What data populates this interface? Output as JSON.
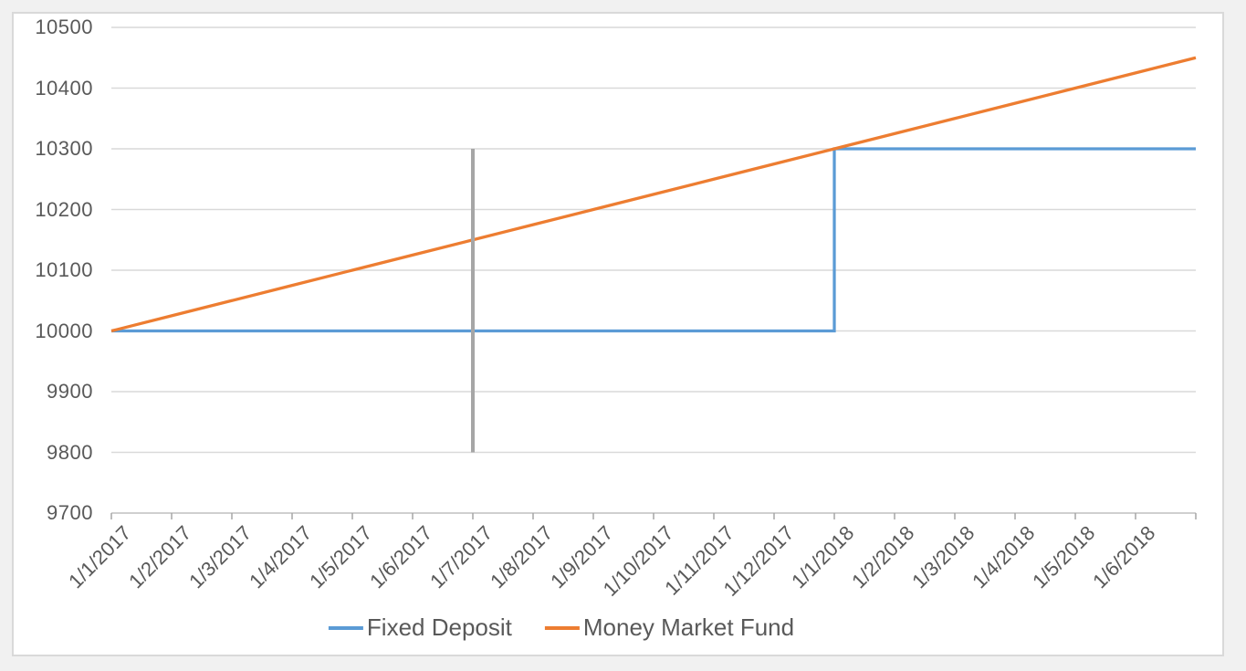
{
  "page": {
    "background_color": "#f1f1f1",
    "frame_background": "#ffffff",
    "frame_border_color": "#d9d9d9",
    "text_color": "#595959",
    "gridline_color": "#d9d9d9",
    "axis_line_color": "#bfbfbf",
    "tick_color": "#a6a6a6"
  },
  "chart_data": {
    "type": "line",
    "title": "",
    "xlabel": "",
    "ylabel": "",
    "ylim": [
      9700,
      10500
    ],
    "ytick_step": 100,
    "y_tick_labels": [
      "10500",
      "10400",
      "10300",
      "10200",
      "10100",
      "10000",
      "9900",
      "9800",
      "9700"
    ],
    "x_tick_labels": [
      "1/1/2017",
      "1/2/2017",
      "1/3/2017",
      "1/4/2017",
      "1/5/2017",
      "1/6/2017",
      "1/7/2017",
      "1/8/2017",
      "1/9/2017",
      "1/10/2017",
      "1/11/2017",
      "1/12/2017",
      "1/1/2018",
      "1/2/2018",
      "1/3/2018",
      "1/4/2018",
      "1/5/2018",
      "1/6/2018"
    ],
    "x_points_total": 19,
    "grid": "horizontal",
    "legend_position": "bottom-center",
    "series": [
      {
        "name": "Fixed Deposit",
        "color": "#5B9BD5",
        "line_width": 3.25,
        "in_legend": true,
        "description": "Flat at 10000 from 1/1/2017, vertical step up to 10300 at 1/1/2018, flat at 10300 to end",
        "points": [
          [
            0,
            10000
          ],
          [
            12,
            10000
          ],
          [
            12,
            10300
          ],
          [
            18,
            10300
          ]
        ]
      },
      {
        "name": "Money Market Fund",
        "color": "#ED7D31",
        "line_width": 3.25,
        "in_legend": true,
        "description": "Linear growth of 25 per month from 10000 to 10450",
        "points": [
          [
            0,
            10000
          ],
          [
            1,
            10025
          ],
          [
            2,
            10050
          ],
          [
            3,
            10075
          ],
          [
            4,
            10100
          ],
          [
            5,
            10125
          ],
          [
            6,
            10150
          ],
          [
            7,
            10175
          ],
          [
            8,
            10200
          ],
          [
            9,
            10225
          ],
          [
            10,
            10250
          ],
          [
            11,
            10275
          ],
          [
            12,
            10300
          ],
          [
            13,
            10325
          ],
          [
            14,
            10350
          ],
          [
            15,
            10375
          ],
          [
            16,
            10400
          ],
          [
            17,
            10425
          ],
          [
            18,
            10450
          ]
        ]
      },
      {
        "name": "Marker 1/7/2017",
        "color": "#A6A6A6",
        "line_width": 4,
        "in_legend": false,
        "description": "Vertical gray marker line at 1/7/2017 from 9800 to 10300",
        "points": [
          [
            6,
            9800
          ],
          [
            6,
            10300
          ]
        ]
      }
    ]
  }
}
